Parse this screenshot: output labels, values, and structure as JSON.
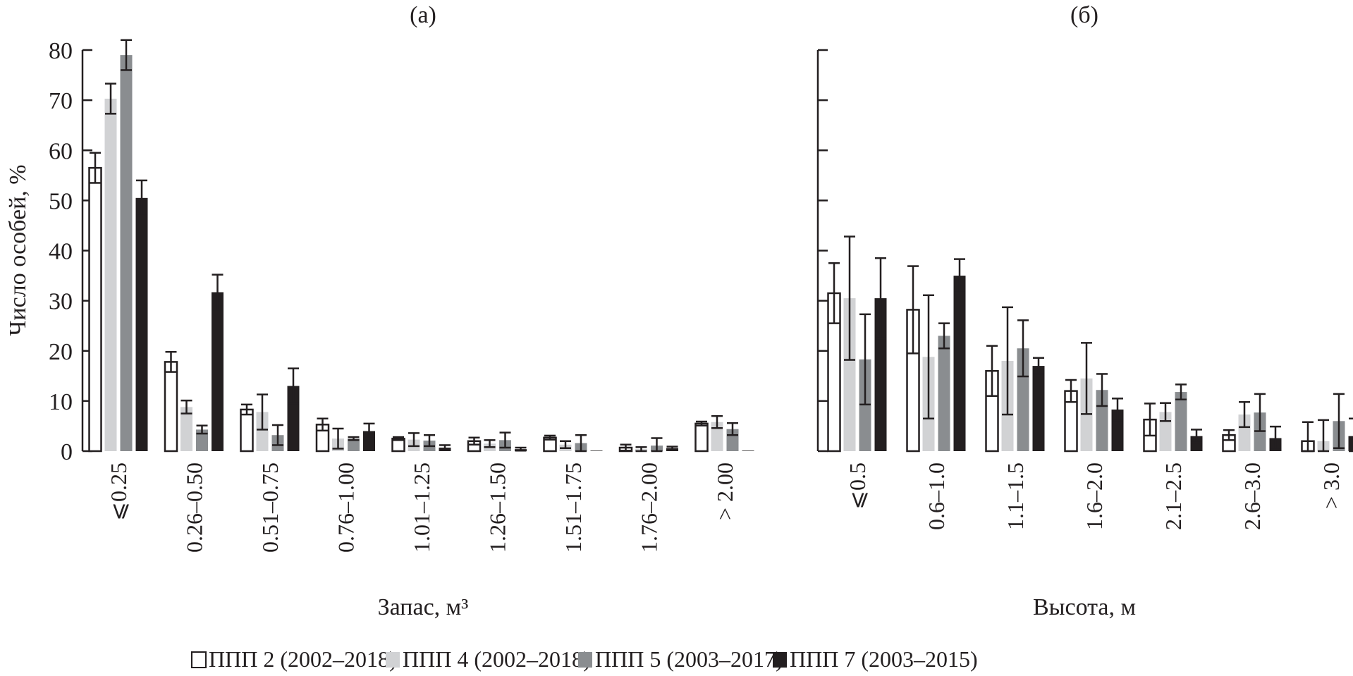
{
  "legend": [
    {
      "label": "ППП 2 (2002–2018)",
      "fill": "#ffffff",
      "stroke": "#231f20"
    },
    {
      "label": "ППП 4 (2002–2018)",
      "fill": "#d1d2d4",
      "stroke": "none"
    },
    {
      "label": "ППП 5 (2003–2017)",
      "fill": "#8a8d90",
      "stroke": "none"
    },
    {
      "label": "ППП 7 (2003–2015)",
      "fill": "#231f20",
      "stroke": "none"
    }
  ],
  "chart_data": [
    {
      "type": "bar",
      "title": "(а)",
      "xlabel": "Запас, м³",
      "ylabel": "Число особей, %",
      "ylim": [
        0,
        80
      ],
      "yticks": [
        "0",
        "10",
        "20",
        "30",
        "40",
        "50",
        "60",
        "70",
        "80"
      ],
      "legend_position": "bottom",
      "categories": [
        "⩽0.25",
        "0.26–0.50",
        "0.51–0.75",
        "0.76–1.00",
        "1.01–1.25",
        "1.26–1.50",
        "1.51–1.75",
        "1.76–2.00",
        "> 2.00"
      ],
      "series": [
        {
          "name": "ППП 2 (2002–2018)",
          "values": [
            56.5,
            17.8,
            8.3,
            5.3,
            2.5,
            2.0,
            2.7,
            0.7,
            5.5
          ],
          "errors": [
            3.0,
            2.0,
            1.0,
            1.2,
            0.3,
            0.7,
            0.4,
            0.6,
            0.4
          ]
        },
        {
          "name": "ППП 4 (2002–2018)",
          "values": [
            70.3,
            8.8,
            7.8,
            2.5,
            2.3,
            1.5,
            1.3,
            0.4,
            5.8
          ],
          "errors": [
            3.0,
            1.3,
            3.5,
            2.0,
            1.3,
            0.7,
            0.7,
            0.4,
            1.2
          ]
        },
        {
          "name": "ППП 5 (2003–2017)",
          "values": [
            79.0,
            4.3,
            3.2,
            2.5,
            2.1,
            2.2,
            1.6,
            1.1,
            4.4
          ],
          "errors": [
            3.0,
            0.8,
            2.0,
            0.3,
            1.1,
            1.5,
            1.6,
            1.5,
            1.2
          ]
        },
        {
          "name": "ППП 7 (2003–2015)",
          "values": [
            50.5,
            31.7,
            13.0,
            4.0,
            0.7,
            0.4,
            0.1,
            0.6,
            0.1
          ],
          "errors": [
            3.5,
            3.5,
            3.5,
            1.5,
            0.5,
            0.3,
            0,
            0.3,
            0
          ]
        }
      ]
    },
    {
      "type": "bar",
      "title": "(б)",
      "xlabel": "Высота, м",
      "ylim": [
        0,
        80
      ],
      "legend_position": "bottom",
      "categories": [
        "⩽0.5",
        "0.6–1.0",
        "1.1–1.5",
        "1.6–2.0",
        "2.1–2.5",
        "2.6–3.0",
        "> 3.0"
      ],
      "series": [
        {
          "name": "ППП 2 (2002–2018)",
          "values": [
            31.5,
            28.2,
            16.0,
            12.0,
            6.3,
            3.2,
            2.0
          ],
          "errors": [
            6.0,
            8.7,
            5.0,
            2.2,
            3.2,
            1.0,
            3.8
          ]
        },
        {
          "name": "ППП 4 (2002–2018)",
          "values": [
            30.5,
            18.8,
            18.0,
            14.5,
            7.8,
            7.3,
            2.0
          ],
          "errors": [
            12.3,
            12.3,
            10.7,
            7.1,
            1.8,
            2.5,
            4.2
          ]
        },
        {
          "name": "ППП 5 (2003–2017)",
          "values": [
            18.3,
            23.0,
            20.5,
            12.2,
            11.8,
            7.7,
            6.0
          ],
          "errors": [
            9.0,
            2.5,
            5.6,
            3.2,
            1.5,
            3.7,
            5.4
          ]
        },
        {
          "name": "ППП 7 (2003–2015)",
          "values": [
            30.5,
            35.0,
            17.0,
            8.3,
            3.0,
            2.6,
            3.0
          ],
          "errors": [
            8.0,
            3.3,
            1.6,
            2.2,
            1.3,
            2.3,
            3.5
          ]
        }
      ]
    }
  ]
}
